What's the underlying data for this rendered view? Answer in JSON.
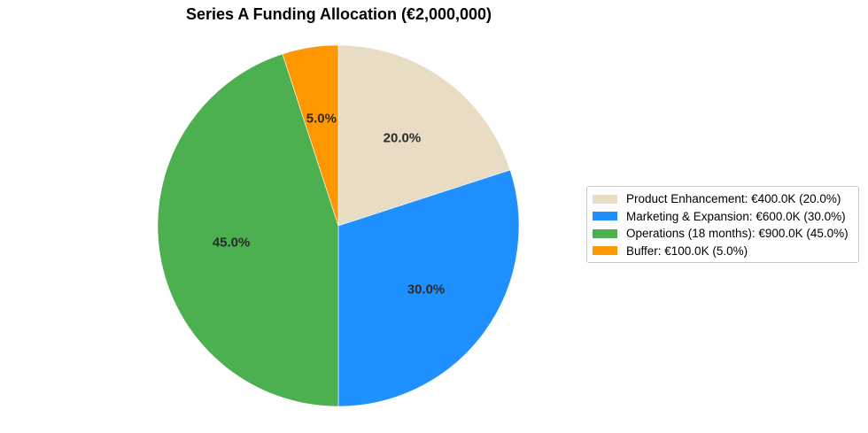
{
  "chart_data": {
    "type": "pie",
    "title": "Series A Funding Allocation (€2,000,000)",
    "start_angle_deg": 90,
    "direction": "clockwise",
    "slices": [
      {
        "label": "Product Enhancement",
        "value": 400000,
        "percent_label": "20.0%",
        "color": "#E8DCC4",
        "legend_label": "Product Enhancement: €400.0K (20.0%)"
      },
      {
        "label": "Marketing & Expansion",
        "value": 600000,
        "percent_label": "30.0%",
        "color": "#1E90FF",
        "legend_label": "Marketing & Expansion: €600.0K (30.0%)"
      },
      {
        "label": "Operations (18 months)",
        "value": 900000,
        "percent_label": "45.0%",
        "color": "#4CAF50",
        "legend_label": "Operations (18 months): €900.0K (45.0%)"
      },
      {
        "label": "Buffer",
        "value": 100000,
        "percent_label": "5.0%",
        "color": "#FF9800",
        "legend_label": "Buffer: €100.0K (5.0%)"
      }
    ],
    "legend_position": "right"
  }
}
